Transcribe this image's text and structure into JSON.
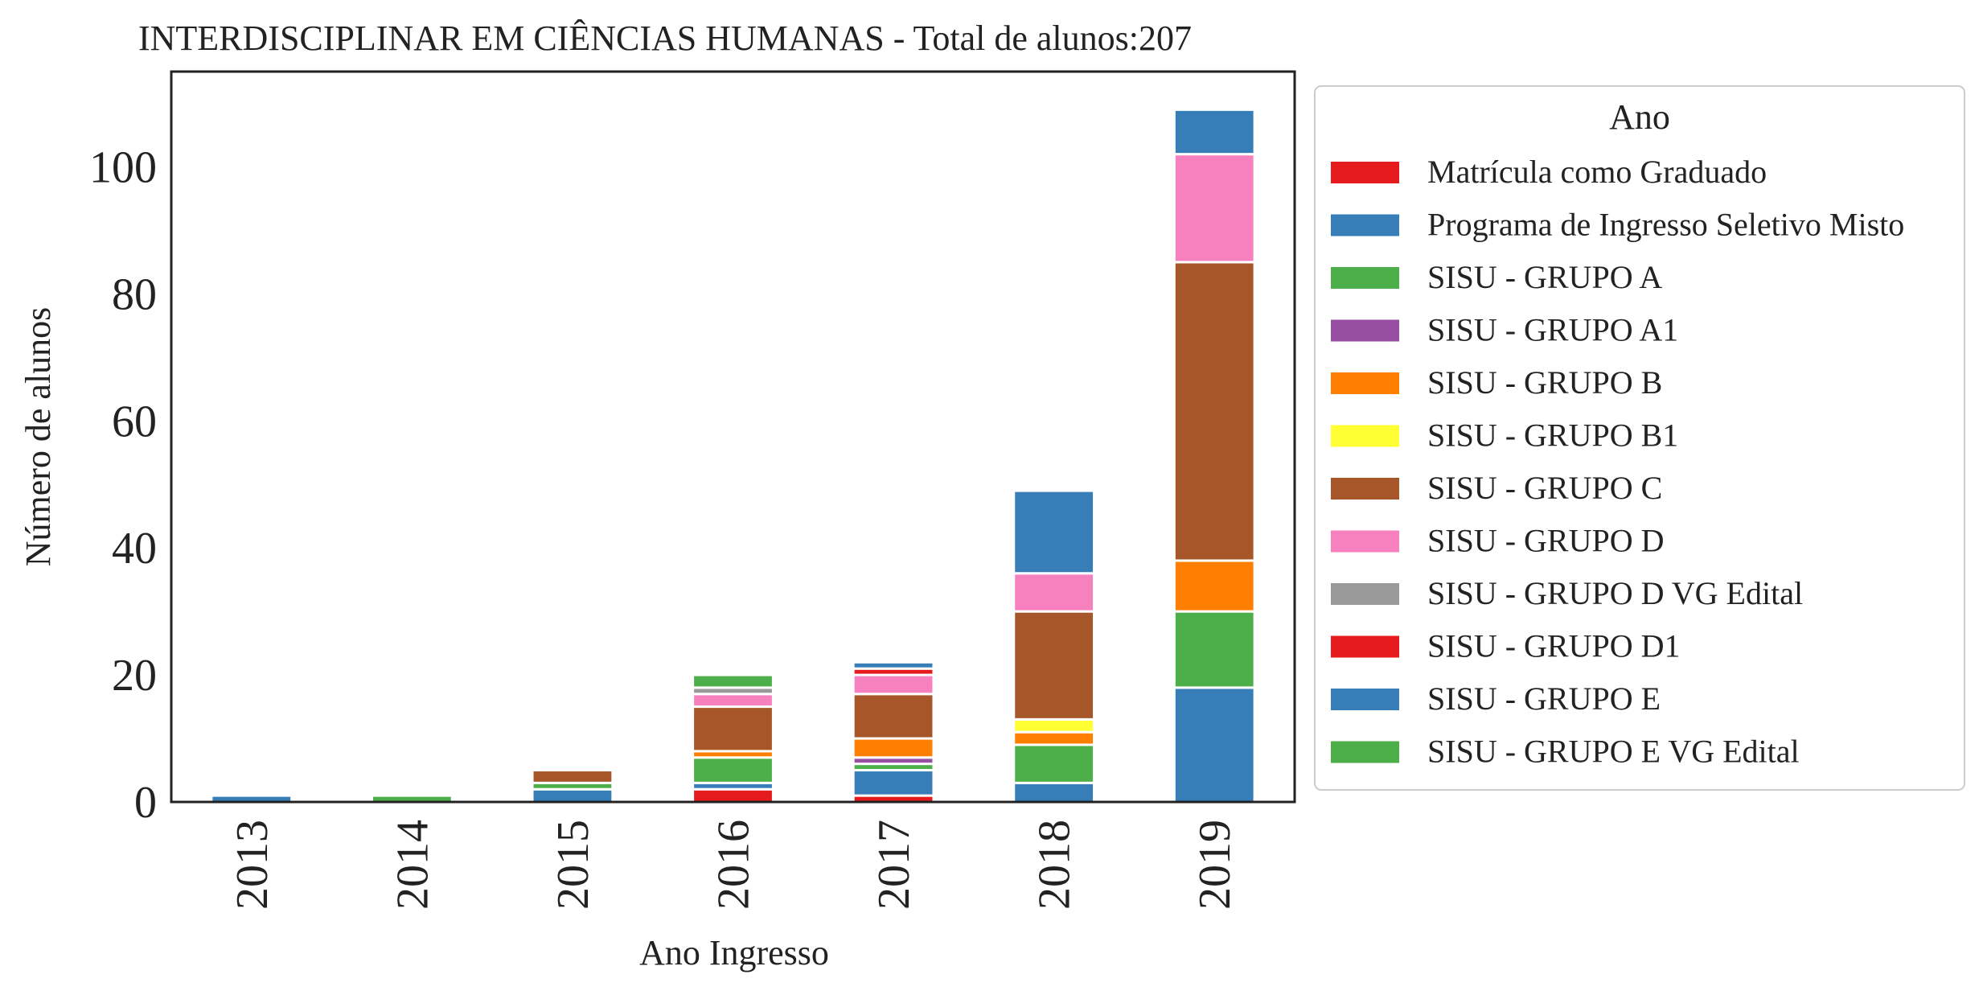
{
  "chart_data": {
    "type": "bar",
    "stacked": true,
    "title": "INTERDISCIPLINAR EM CIÊNCIAS HUMANAS - Total de alunos:207",
    "xlabel": "Ano Ingresso",
    "ylabel": "Número de alunos",
    "categories": [
      "2013",
      "2014",
      "2015",
      "2016",
      "2017",
      "2018",
      "2019"
    ],
    "ylim": [
      0,
      115
    ],
    "yticks": [
      0,
      20,
      40,
      60,
      80,
      100
    ],
    "grid": false,
    "legend": {
      "title": "Ano",
      "placement": "right, outside plot"
    },
    "series": [
      {
        "name": "Matrícula como Graduado",
        "color": "#e41a1c",
        "values": [
          0,
          0,
          0,
          0,
          0,
          0,
          0
        ]
      },
      {
        "name": "Programa de Ingresso Seletivo Misto",
        "color": "#377eb8",
        "values": [
          0,
          0,
          0,
          0,
          0,
          0,
          0
        ]
      },
      {
        "name": "SISU - GRUPO A",
        "color": "#4daf4a",
        "values": [
          0,
          0,
          0,
          0,
          0,
          0,
          0
        ]
      },
      {
        "name": "SISU - GRUPO A1",
        "color": "#984ea3",
        "values": [
          0,
          0,
          0,
          0,
          0,
          0,
          0
        ]
      },
      {
        "name": "SISU - GRUPO B",
        "color": "#ff7f00",
        "values": [
          0,
          0,
          0,
          0,
          0,
          0,
          0
        ]
      },
      {
        "name": "SISU - GRUPO B1",
        "color": "#ffff33",
        "values": [
          0,
          0,
          0,
          0,
          0,
          0,
          0
        ]
      },
      {
        "name": "SISU - GRUPO C",
        "color": "#a65628",
        "values": [
          0,
          0,
          0,
          0,
          0,
          0,
          0
        ]
      },
      {
        "name": "SISU - GRUPO D",
        "color": "#f781bf",
        "values": [
          0,
          0,
          0,
          0,
          0,
          0,
          0
        ]
      },
      {
        "name": "SISU - GRUPO D VG Edital",
        "color": "#999999",
        "values": [
          0,
          0,
          0,
          0,
          0,
          0,
          0
        ]
      },
      {
        "name": "SISU - GRUPO D1",
        "color": "#e41a1c",
        "values": [
          0,
          0,
          0,
          0,
          0,
          0,
          0
        ]
      },
      {
        "name": "SISU - GRUPO E",
        "color": "#377eb8",
        "values": [
          0,
          0,
          0,
          0,
          0,
          0,
          0
        ]
      },
      {
        "name": "SISU - GRUPO E VG Edital",
        "color": "#4daf4a",
        "values": [
          0,
          0,
          0,
          0,
          0,
          0,
          0
        ]
      }
    ],
    "stacks": [
      [
        {
          "series": 1,
          "value": 1
        }
      ],
      [
        {
          "series": 2,
          "value": 1
        }
      ],
      [
        {
          "series": 1,
          "value": 2
        },
        {
          "series": 2,
          "value": 1
        },
        {
          "series": 6,
          "value": 2
        }
      ],
      [
        {
          "series": 0,
          "value": 2
        },
        {
          "series": 1,
          "value": 1
        },
        {
          "series": 2,
          "value": 4
        },
        {
          "series": 4,
          "value": 1
        },
        {
          "series": 6,
          "value": 7
        },
        {
          "series": 7,
          "value": 2
        },
        {
          "series": 8,
          "value": 1
        },
        {
          "series": 11,
          "value": 2
        }
      ],
      [
        {
          "series": 0,
          "value": 1
        },
        {
          "series": 1,
          "value": 4
        },
        {
          "series": 2,
          "value": 1
        },
        {
          "series": 3,
          "value": 1
        },
        {
          "series": 4,
          "value": 3
        },
        {
          "series": 6,
          "value": 7
        },
        {
          "series": 7,
          "value": 3
        },
        {
          "series": 9,
          "value": 1
        },
        {
          "series": 10,
          "value": 1
        }
      ],
      [
        {
          "series": 1,
          "value": 3
        },
        {
          "series": 2,
          "value": 6
        },
        {
          "series": 4,
          "value": 2
        },
        {
          "series": 5,
          "value": 2
        },
        {
          "series": 6,
          "value": 17
        },
        {
          "series": 7,
          "value": 6
        },
        {
          "series": 10,
          "value": 13
        }
      ],
      [
        {
          "series": 1,
          "value": 18
        },
        {
          "series": 2,
          "value": 12
        },
        {
          "series": 4,
          "value": 8
        },
        {
          "series": 6,
          "value": 47
        },
        {
          "series": 7,
          "value": 17
        },
        {
          "series": 10,
          "value": 7
        }
      ]
    ]
  }
}
